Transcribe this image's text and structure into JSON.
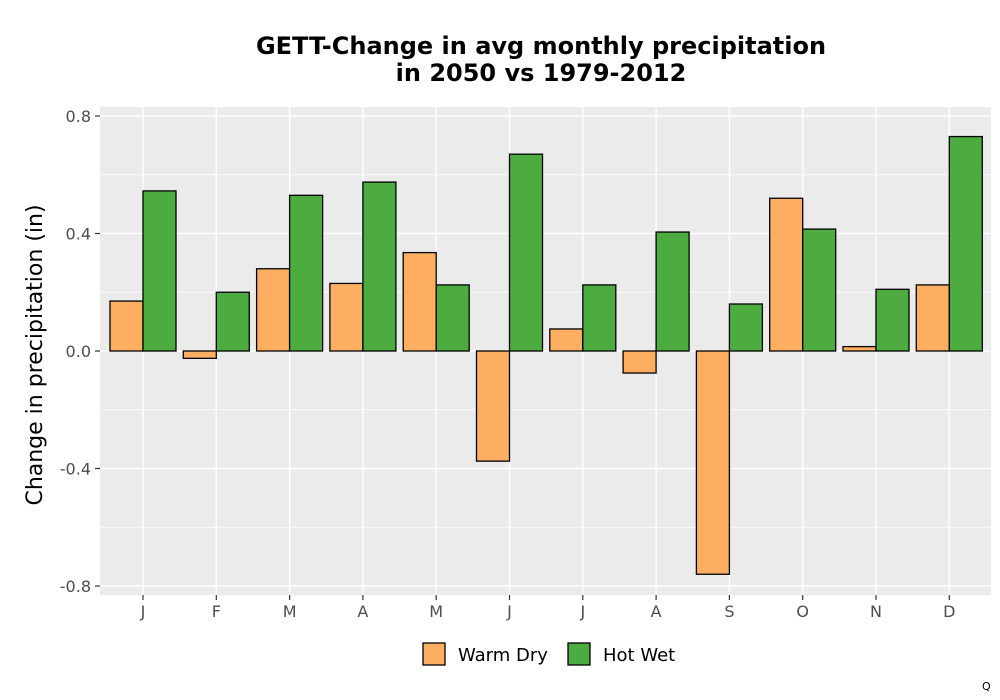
{
  "chart_data": {
    "type": "bar",
    "title_line1": "GETT-Change in avg monthly precipitation",
    "title_line2": "in 2050 vs 1979-2012",
    "xlabel": "",
    "ylabel": "Change in precipitation (in)",
    "ylim": [
      -0.82,
      0.8
    ],
    "yticks": [
      0.8,
      0.4,
      0.0,
      -0.4,
      -0.8
    ],
    "ytick_labels": [
      "0.8",
      "0.4",
      "0.0",
      "-0.4",
      "-0.8"
    ],
    "categories": [
      "J",
      "F",
      "M",
      "A",
      "M",
      "J",
      "J",
      "A",
      "S",
      "O",
      "N",
      "D"
    ],
    "series": [
      {
        "name": "Warm Dry",
        "color": "#FDAE61",
        "values": [
          0.17,
          -0.025,
          0.28,
          0.23,
          0.335,
          -0.375,
          0.075,
          -0.075,
          -0.76,
          0.52,
          0.015,
          0.225
        ]
      },
      {
        "name": "Hot Wet",
        "color": "#4DAC3F",
        "values": [
          0.545,
          0.2,
          0.53,
          0.575,
          0.225,
          0.67,
          0.225,
          0.405,
          0.16,
          0.415,
          0.21,
          0.73
        ]
      }
    ],
    "grid": true,
    "legend_position": "bottom",
    "panel_background": "#EBEBEB",
    "corner_text": "Q"
  }
}
